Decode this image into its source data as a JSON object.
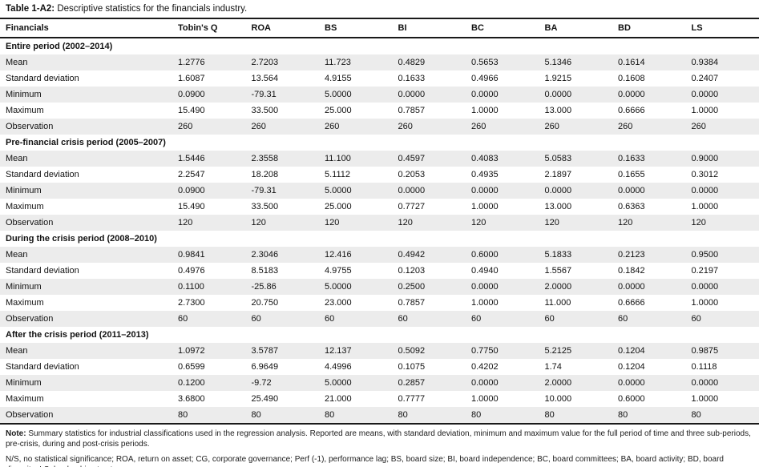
{
  "title": {
    "label": "Table 1-A2:",
    "text": "Descriptive statistics for the financials industry."
  },
  "colors": {
    "row_stripe": "#ececec",
    "rule": "#1a1a1a"
  },
  "table": {
    "columns": [
      "Financials",
      "Tobin's Q",
      "ROA",
      "BS",
      "BI",
      "BC",
      "BA",
      "BD",
      "LS"
    ],
    "sections": [
      {
        "header": "Entire period (2002–2014)",
        "rows": [
          {
            "label": "Mean",
            "values": [
              "1.2776",
              "2.7203",
              "11.723",
              "0.4829",
              "0.5653",
              "5.1346",
              "0.1614",
              "0.9384"
            ]
          },
          {
            "label": "Standard deviation",
            "values": [
              "1.6087",
              "13.564",
              "4.9155",
              "0.1633",
              "0.4966",
              "1.9215",
              "0.1608",
              "0.2407"
            ]
          },
          {
            "label": "Minimum",
            "values": [
              "0.0900",
              "-79.31",
              "5.0000",
              "0.0000",
              "0.0000",
              "0.0000",
              "0.0000",
              "0.0000"
            ]
          },
          {
            "label": "Maximum",
            "values": [
              "15.490",
              "33.500",
              "25.000",
              "0.7857",
              "1.0000",
              "13.000",
              "0.6666",
              "1.0000"
            ]
          },
          {
            "label": "Observation",
            "values": [
              "260",
              "260",
              "260",
              "260",
              "260",
              "260",
              "260",
              "260"
            ]
          }
        ]
      },
      {
        "header": "Pre-financial crisis period (2005–2007)",
        "rows": [
          {
            "label": "Mean",
            "values": [
              "1.5446",
              "2.3558",
              "11.100",
              "0.4597",
              "0.4083",
              "5.0583",
              "0.1633",
              "0.9000"
            ]
          },
          {
            "label": "Standard deviation",
            "values": [
              "2.2547",
              "18.208",
              "5.1112",
              "0.2053",
              "0.4935",
              "2.1897",
              "0.1655",
              "0.3012"
            ]
          },
          {
            "label": "Minimum",
            "values": [
              "0.0900",
              "-79.31",
              "5.0000",
              "0.0000",
              "0.0000",
              "0.0000",
              "0.0000",
              "0.0000"
            ]
          },
          {
            "label": "Maximum",
            "values": [
              "15.490",
              "33.500",
              "25.000",
              "0.7727",
              "1.0000",
              "13.000",
              "0.6363",
              "1.0000"
            ]
          },
          {
            "label": "Observation",
            "values": [
              "120",
              "120",
              "120",
              "120",
              "120",
              "120",
              "120",
              "120"
            ]
          }
        ]
      },
      {
        "header": "During the crisis period (2008–2010)",
        "rows": [
          {
            "label": "Mean",
            "values": [
              "0.9841",
              "2.3046",
              "12.416",
              "0.4942",
              "0.6000",
              "5.1833",
              "0.2123",
              "0.9500"
            ]
          },
          {
            "label": "Standard deviation",
            "values": [
              "0.4976",
              "8.5183",
              "4.9755",
              "0.1203",
              "0.4940",
              "1.5567",
              "0.1842",
              "0.2197"
            ]
          },
          {
            "label": "Minimum",
            "values": [
              "0.1100",
              "-25.86",
              "5.0000",
              "0.2500",
              "0.0000",
              "2.0000",
              "0.0000",
              "0.0000"
            ]
          },
          {
            "label": "Maximum",
            "values": [
              "2.7300",
              "20.750",
              "23.000",
              "0.7857",
              "1.0000",
              "11.000",
              "0.6666",
              "1.0000"
            ]
          },
          {
            "label": "Observation",
            "values": [
              "60",
              "60",
              "60",
              "60",
              "60",
              "60",
              "60",
              "60"
            ]
          }
        ]
      },
      {
        "header": "After the crisis period (2011–2013)",
        "rows": [
          {
            "label": "Mean",
            "values": [
              "1.0972",
              "3.5787",
              "12.137",
              "0.5092",
              "0.7750",
              "5.2125",
              "0.1204",
              "0.9875"
            ]
          },
          {
            "label": "Standard deviation",
            "values": [
              "0.6599",
              "6.9649",
              "4.4996",
              "0.1075",
              "0.4202",
              "1.74",
              "0.1204",
              "0.1118"
            ]
          },
          {
            "label": "Minimum",
            "values": [
              "0.1200",
              "-9.72",
              "5.0000",
              "0.2857",
              "0.0000",
              "2.0000",
              "0.0000",
              "0.0000"
            ]
          },
          {
            "label": "Maximum",
            "values": [
              "3.6800",
              "25.490",
              "21.000",
              "0.7777",
              "1.0000",
              "10.000",
              "0.6000",
              "1.0000"
            ]
          },
          {
            "label": "Observation",
            "values": [
              "80",
              "80",
              "80",
              "80",
              "80",
              "80",
              "80",
              "80"
            ]
          }
        ]
      }
    ]
  },
  "notes": {
    "label": "Note:",
    "text": " Summary statistics for industrial classifications used in the regression analysis. Reported are means, with standard deviation, minimum and maximum value for the full period of time and three sub-periods, pre-crisis, during and post-crisis periods.",
    "abbreviations": "N/S, no statistical significance; ROA, return on asset; CG, corporate governance; Perf (-1), performance lag; BS, board size; BI, board independence; BC, board committees; BA, board activity; BD, board diversity; LS, leadership structure."
  }
}
